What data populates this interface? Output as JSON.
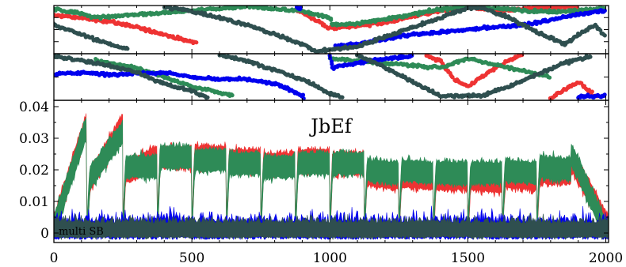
{
  "chart_data": [
    {
      "type": "scatter",
      "panel": "top",
      "xlim": [
        0,
        2010
      ],
      "ylim": [
        0,
        1
      ],
      "yticks": [
        0.25,
        0.5,
        0.75
      ],
      "series": [
        {
          "color": "#ee3333",
          "points": [
            [
              0,
              0.8
            ],
            [
              100,
              0.74
            ],
            [
              200,
              0.67
            ],
            [
              300,
              0.55
            ],
            [
              400,
              0.4
            ],
            [
              480,
              0.27
            ],
            [
              520,
              0.23
            ],
            [
              880,
              0.93
            ],
            [
              1000,
              0.52
            ],
            [
              1200,
              0.64
            ],
            [
              1300,
              0.78
            ],
            [
              1400,
              0.88
            ],
            [
              1500,
              0.98
            ],
            [
              1600,
              0.88
            ],
            [
              1750,
              0.95
            ],
            [
              1900,
              0.98
            ]
          ]
        },
        {
          "color": "#2e8b57",
          "points": [
            [
              0,
              0.92
            ],
            [
              80,
              0.86
            ],
            [
              150,
              0.75
            ],
            [
              700,
              0.98
            ],
            [
              800,
              0.93
            ],
            [
              900,
              0.88
            ],
            [
              1000,
              0.75
            ],
            [
              1010,
              0.6
            ],
            [
              1100,
              0.63
            ],
            [
              1200,
              0.72
            ],
            [
              1300,
              0.82
            ],
            [
              1400,
              0.92
            ],
            [
              1500,
              0.98
            ],
            [
              1700,
              0.9
            ],
            [
              1800,
              0.87
            ],
            [
              1900,
              0.9
            ],
            [
              2000,
              0.95
            ]
          ]
        },
        {
          "color": "#0000ee",
          "points": [
            [
              880,
              0.95
            ],
            [
              900,
              0.95
            ],
            [
              1020,
              0.15
            ],
            [
              1100,
              0.2
            ],
            [
              1200,
              0.3
            ],
            [
              1300,
              0.4
            ],
            [
              1400,
              0.45
            ],
            [
              1500,
              0.5
            ],
            [
              1600,
              0.55
            ],
            [
              1700,
              0.6
            ],
            [
              1800,
              0.7
            ],
            [
              1850,
              0.77
            ],
            [
              2000,
              0.9
            ]
          ]
        },
        {
          "color": "#2f4f4f",
          "points": [
            [
              0,
              0.6
            ],
            [
              50,
              0.5
            ],
            [
              100,
              0.4
            ],
            [
              200,
              0.2
            ],
            [
              270,
              0.1
            ],
            [
              400,
              0.97
            ],
            [
              500,
              0.88
            ],
            [
              600,
              0.75
            ],
            [
              700,
              0.6
            ],
            [
              800,
              0.4
            ],
            [
              900,
              0.2
            ],
            [
              950,
              0.05
            ],
            [
              1100,
              0.15
            ],
            [
              1200,
              0.35
            ],
            [
              1300,
              0.55
            ],
            [
              1400,
              0.75
            ],
            [
              1500,
              0.95
            ],
            [
              1550,
              0.95
            ],
            [
              1650,
              0.75
            ],
            [
              1750,
              0.45
            ],
            [
              1850,
              0.2
            ],
            [
              1960,
              0.6
            ],
            [
              2000,
              0.35
            ]
          ]
        }
      ]
    },
    {
      "type": "scatter",
      "panel": "middle",
      "xlim": [
        0,
        2010
      ],
      "ylim": [
        0,
        1
      ],
      "yticks": [
        0.5
      ],
      "series": [
        {
          "color": "#ee3333",
          "points": [
            [
              1350,
              0.95
            ],
            [
              1400,
              0.85
            ],
            [
              1450,
              0.45
            ],
            [
              1500,
              0.3
            ],
            [
              1600,
              0.7
            ],
            [
              1700,
              1.0
            ],
            [
              1800,
              0.05
            ],
            [
              1900,
              0.4
            ],
            [
              1970,
              0.05
            ]
          ]
        },
        {
          "color": "#2e8b57",
          "points": [
            [
              150,
              0.85
            ],
            [
              300,
              0.7
            ],
            [
              500,
              0.3
            ],
            [
              650,
              0.1
            ],
            [
              1000,
              0.9
            ],
            [
              1400,
              0.7
            ],
            [
              1500,
              0.9
            ],
            [
              1800,
              0.5
            ]
          ]
        },
        {
          "color": "#0000ee",
          "points": [
            [
              0,
              0.55
            ],
            [
              100,
              0.6
            ],
            [
              200,
              0.55
            ],
            [
              300,
              0.58
            ],
            [
              400,
              0.6
            ],
            [
              500,
              0.5
            ],
            [
              600,
              0.45
            ],
            [
              700,
              0.45
            ],
            [
              800,
              0.35
            ],
            [
              870,
              0.2
            ],
            [
              910,
              0.05
            ],
            [
              1000,
              0.95
            ],
            [
              1010,
              0.7
            ],
            [
              1100,
              0.8
            ],
            [
              1200,
              0.9
            ],
            [
              1300,
              0.95
            ],
            [
              1900,
              0.08
            ],
            [
              2000,
              0.1
            ]
          ]
        },
        {
          "color": "#2f4f4f",
          "points": [
            [
              0,
              0.95
            ],
            [
              100,
              0.85
            ],
            [
              200,
              0.75
            ],
            [
              300,
              0.6
            ],
            [
              400,
              0.35
            ],
            [
              500,
              0.2
            ],
            [
              560,
              0.05
            ],
            [
              600,
              0.98
            ],
            [
              700,
              0.85
            ],
            [
              800,
              0.65
            ],
            [
              900,
              0.45
            ],
            [
              1000,
              0.15
            ],
            [
              1050,
              0.05
            ],
            [
              1100,
              0.98
            ],
            [
              1200,
              0.7
            ],
            [
              1300,
              0.4
            ],
            [
              1400,
              0.1
            ],
            [
              1550,
              0.1
            ],
            [
              1650,
              0.3
            ],
            [
              1750,
              0.55
            ],
            [
              1850,
              0.8
            ],
            [
              1950,
              0.95
            ]
          ]
        }
      ]
    },
    {
      "type": "area",
      "panel": "bottom",
      "title": "JbEf",
      "annotation": "multi SB",
      "xlim": [
        0,
        2010
      ],
      "ylim": [
        -0.003,
        0.042
      ],
      "xticks": [
        0,
        500,
        1000,
        1500,
        2000
      ],
      "xticklabels": [
        "0",
        "500",
        "1000",
        "1500",
        "2000"
      ],
      "yticks": [
        0,
        0.01,
        0.02,
        0.03,
        0.04
      ],
      "yticklabels": [
        "0",
        "0.01",
        "0.02",
        "0.03",
        "0.04"
      ],
      "segment_boundaries": [
        0,
        120,
        250,
        375,
        500,
        625,
        750,
        875,
        1000,
        1125,
        1250,
        1375,
        1500,
        1625,
        1750,
        1875,
        2010
      ],
      "series": [
        {
          "color": "#ee3333",
          "segment_levels": [
            [
              0.005,
              0.038
            ],
            [
              0.018,
              0.037
            ],
            [
              0.022,
              0.027
            ],
            [
              0.027,
              0.027
            ],
            [
              0.027,
              0.027
            ],
            [
              0.026,
              0.026
            ],
            [
              0.025,
              0.025
            ],
            [
              0.026,
              0.026
            ],
            [
              0.025,
              0.025
            ],
            [
              0.022,
              0.02
            ],
            [
              0.021,
              0.02
            ],
            [
              0.02,
              0.02
            ],
            [
              0.02,
              0.019
            ],
            [
              0.021,
              0.02
            ],
            [
              0.022,
              0.022
            ],
            [
              0.026,
              0.005
            ]
          ]
        },
        {
          "color": "#2e8b57",
          "segment_levels": [
            [
              0.005,
              0.037
            ],
            [
              0.019,
              0.035
            ],
            [
              0.024,
              0.024
            ],
            [
              0.027,
              0.027
            ],
            [
              0.026,
              0.026
            ],
            [
              0.025,
              0.025
            ],
            [
              0.024,
              0.024
            ],
            [
              0.025,
              0.025
            ],
            [
              0.025,
              0.025
            ],
            [
              0.023,
              0.022
            ],
            [
              0.023,
              0.022
            ],
            [
              0.022,
              0.022
            ],
            [
              0.022,
              0.022
            ],
            [
              0.023,
              0.022
            ],
            [
              0.024,
              0.023
            ],
            [
              0.028,
              0.002
            ]
          ]
        },
        {
          "color": "#0000ee",
          "level": 0.003,
          "noise": 0.005
        },
        {
          "color": "#2f4f4f",
          "level": 0.003,
          "noise": 0.003
        }
      ]
    }
  ]
}
